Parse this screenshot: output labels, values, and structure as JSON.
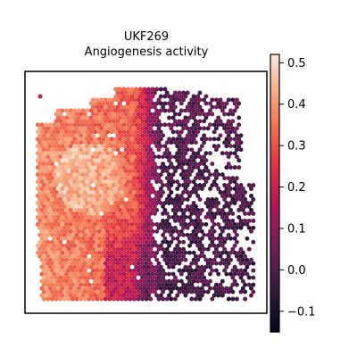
{
  "chart_data": {
    "type": "scatter",
    "title": "UKF269",
    "subtitle": "Angiogenesis activity",
    "xlabel": "",
    "ylabel": "",
    "grid": false,
    "legend": "none",
    "axes_ticks": false,
    "colormap": "rocket",
    "colorbar": {
      "placement": "right",
      "range": [
        -0.15,
        0.52
      ],
      "ticks": [
        -0.1,
        0.0,
        0.1,
        0.2,
        0.3,
        0.4,
        0.5
      ],
      "tick_labels": [
        "−0.1",
        "0.0",
        "0.1",
        "0.2",
        "0.3",
        "0.4",
        "0.5"
      ]
    },
    "description_regions": [
      {
        "region": "left",
        "typical_value": 0.35
      },
      {
        "region": "center",
        "typical_value": 0.2
      },
      {
        "region": "right",
        "typical_value": -0.05
      }
    ],
    "colors": {
      "low": "#03051a",
      "mid_low": "#701f57",
      "mid": "#e13342",
      "mid_high": "#f37651",
      "high": "#faebdd"
    }
  }
}
